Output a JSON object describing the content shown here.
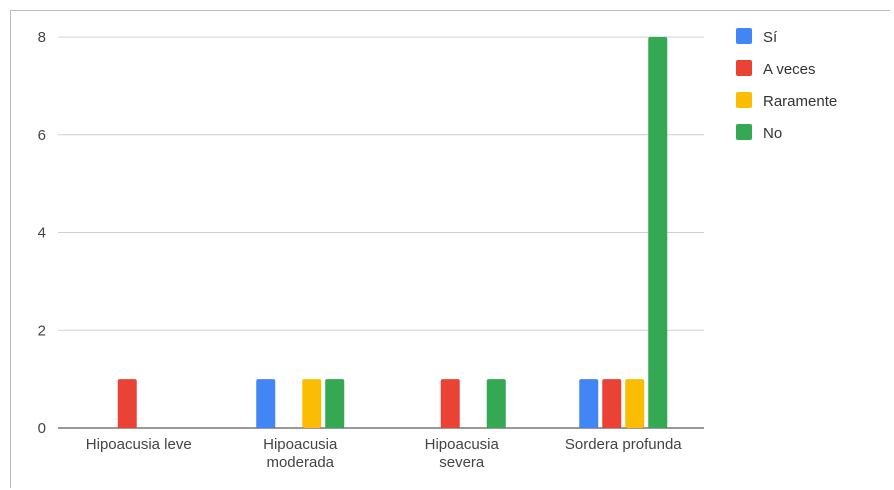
{
  "chart_data": {
    "type": "bar",
    "title": "",
    "xlabel": "",
    "ylabel": "",
    "categories": [
      [
        "Hipoacusia leve"
      ],
      [
        "Hipoacusia",
        "moderada"
      ],
      [
        "Hipoacusia",
        "severa"
      ],
      [
        "Sordera profunda"
      ]
    ],
    "series": [
      {
        "name": "Sí",
        "color": "#4285f4",
        "values": [
          0,
          1,
          0,
          1
        ]
      },
      {
        "name": "A veces",
        "color": "#ea4335",
        "values": [
          1,
          0,
          1,
          1
        ]
      },
      {
        "name": "Raramente",
        "color": "#fbbc04",
        "values": [
          0,
          1,
          0,
          1
        ]
      },
      {
        "name": "No",
        "color": "#34a853",
        "values": [
          0,
          1,
          1,
          8
        ]
      }
    ],
    "ylim": [
      0,
      8
    ],
    "yticks": [
      0,
      2,
      4,
      6,
      8
    ],
    "grid": true,
    "legend": "top-right"
  }
}
